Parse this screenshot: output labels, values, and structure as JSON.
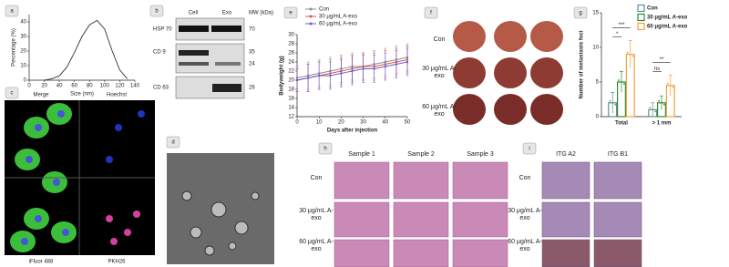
{
  "panel_labels": [
    "a",
    "b",
    "c",
    "d",
    "e",
    "f",
    "g",
    "h",
    "i"
  ],
  "chart_data": [
    {
      "type": "line",
      "x_label": "Size (nm)",
      "y_label": "Percentage (%)",
      "x": [
        20,
        30,
        40,
        50,
        60,
        70,
        80,
        90,
        100,
        110,
        120,
        130
      ],
      "series": [
        {
          "color": "#333333",
          "values": [
            0,
            1,
            3,
            9,
            19,
            30,
            38,
            41,
            35,
            20,
            7,
            1
          ]
        }
      ],
      "xlim": [
        0,
        140
      ],
      "xticks": [
        0,
        20,
        40,
        60,
        80,
        100,
        120,
        140
      ],
      "ylim": [
        0,
        45
      ],
      "yticks": [
        0,
        10,
        20,
        30,
        40
      ]
    },
    {
      "type": "line",
      "x_label": "Days after injection",
      "y_label": "Bodyweight (g)",
      "x": [
        0,
        5,
        10,
        15,
        20,
        25,
        30,
        35,
        40,
        45,
        50
      ],
      "series": [
        {
          "name": "Con",
          "color": "#8c8c8c",
          "values": [
            20.5,
            21,
            21.5,
            22,
            22.5,
            23,
            23,
            23.5,
            24,
            24.5,
            25
          ],
          "errors": [
            2.5,
            3,
            3,
            3,
            3,
            3,
            3,
            3,
            3,
            3,
            3
          ]
        },
        {
          "name": "30 μg/mL A-exo",
          "color": "#d9534f",
          "values": [
            20,
            20.5,
            21,
            21.5,
            22,
            22.5,
            23,
            23,
            23.5,
            24,
            24.5
          ],
          "errors": [
            2.5,
            3,
            3,
            3,
            3,
            3,
            3,
            3,
            3,
            3,
            3
          ]
        },
        {
          "name": "60 μg/mL A-exo",
          "color": "#6a5acd",
          "values": [
            20,
            20.5,
            21,
            21,
            21.5,
            22,
            22.5,
            22.5,
            23,
            23.5,
            24
          ],
          "errors": [
            2.5,
            3,
            3,
            3,
            3,
            3,
            3,
            3,
            3,
            3,
            3
          ]
        }
      ],
      "xlim": [
        0,
        50
      ],
      "xticks": [
        0,
        10,
        20,
        30,
        40,
        50
      ],
      "ylim": [
        12,
        30
      ],
      "yticks": [
        12,
        14,
        16,
        18,
        20,
        22,
        24,
        26,
        28,
        30
      ],
      "legend": "top"
    },
    {
      "type": "bar",
      "y_label": "Number of metastasis foci",
      "categories": [
        "Total",
        "> 1 mm"
      ],
      "series": [
        {
          "name": "Con",
          "color": "#5f8f8f",
          "values": [
            2,
            1
          ],
          "errors": [
            1.5,
            1
          ]
        },
        {
          "name": "30 μg/mL A-exo",
          "color": "#2e8b2e",
          "values": [
            5,
            2
          ],
          "errors": [
            1.5,
            1
          ]
        },
        {
          "name": "60 μg/mL A-exo",
          "color": "#f0a040",
          "values": [
            9,
            4.5
          ],
          "errors": [
            2,
            1.5
          ]
        }
      ],
      "ylim": [
        0,
        15
      ],
      "yticks": [
        0,
        5,
        10,
        15
      ],
      "legend": "top-right",
      "annotations": [
        "*",
        "***",
        "ns",
        "**"
      ]
    }
  ],
  "blot": {
    "columns": [
      "Cell",
      "Exo"
    ],
    "mw_header": "MW (kDa)",
    "rows": [
      {
        "label": "HSP 70",
        "markers": [
          "70"
        ]
      },
      {
        "label": "CD 9",
        "markers": [
          "35",
          "24"
        ]
      },
      {
        "label": "CD 63",
        "markers": [
          "26"
        ]
      }
    ]
  },
  "panel_c": {
    "top": [
      "Merge",
      "Hoechst"
    ],
    "bottom": [
      "iFluor 488",
      "PKH26"
    ]
  },
  "panel_f": {
    "rows": [
      "Con",
      "30 μg/mL A-exo",
      "60 μg/mL A-exo"
    ]
  },
  "panel_h": {
    "columns": [
      "Sample 1",
      "Sample 2",
      "Sample 3"
    ],
    "rows": [
      "Con",
      "30 μg/mL A-exo",
      "60 μg/mL A-exo"
    ]
  },
  "panel_i": {
    "columns": [
      "ITG A2",
      "ITG B1"
    ],
    "rows": [
      "Con",
      "30 μg/mL A-exo",
      "60 μg/mL A-exo"
    ]
  }
}
